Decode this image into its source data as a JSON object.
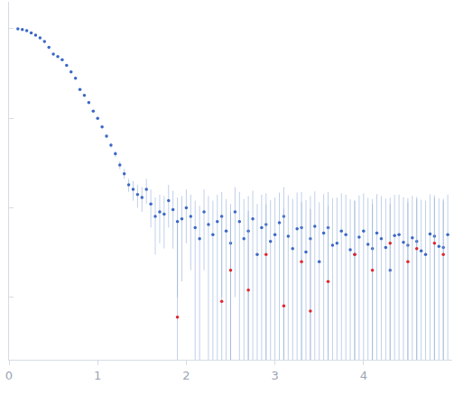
{
  "chart_data": {
    "type": "scatter",
    "log": "y",
    "grid": false,
    "tick_labels": "x",
    "xlim": [
      0,
      5
    ],
    "xticks": [
      0,
      1,
      2,
      3,
      4
    ],
    "ylim": [
      0.0002,
      2
    ],
    "yticks": [
      1,
      0.1,
      0.01,
      0.001
    ],
    "series": [
      {
        "color": "#3b67c6",
        "marker": "circle",
        "x": [
          0.1,
          0.15,
          0.2,
          0.25,
          0.3,
          0.35,
          0.4,
          0.45,
          0.5,
          0.55,
          0.6,
          0.65,
          0.7,
          0.75,
          0.8,
          0.85,
          0.9,
          0.95,
          1.0,
          1.05,
          1.1,
          1.15,
          1.2,
          1.25,
          1.3,
          1.35,
          1.4,
          1.45,
          1.5,
          1.55,
          1.6,
          1.65,
          1.7,
          1.75,
          1.8,
          1.85,
          1.9,
          1.95,
          2.0,
          2.05,
          2.1,
          2.15,
          2.2,
          2.25,
          2.3,
          2.35,
          2.4,
          2.45,
          2.5,
          2.55,
          2.6,
          2.65,
          2.7,
          2.75,
          2.8,
          2.85,
          2.9,
          2.95,
          3.0,
          3.05,
          3.1,
          3.15,
          3.2,
          3.25,
          3.3,
          3.35,
          3.4,
          3.45,
          3.5,
          3.55,
          3.6,
          3.65,
          3.7,
          3.75,
          3.8,
          3.85,
          3.9,
          3.95,
          4.0,
          4.05,
          4.1,
          4.15,
          4.2,
          4.25,
          4.3,
          4.35,
          4.4,
          4.45,
          4.5,
          4.55,
          4.6,
          4.65,
          4.7,
          4.75,
          4.8,
          4.85,
          4.9,
          4.95
        ],
        "values": [
          1.0,
          0.98,
          0.95,
          0.9,
          0.85,
          0.79,
          0.72,
          0.62,
          0.52,
          0.49,
          0.45,
          0.39,
          0.33,
          0.28,
          0.21,
          0.18,
          0.15,
          0.12,
          0.1,
          0.08,
          0.063,
          0.05,
          0.04,
          0.03,
          0.024,
          0.018,
          0.016,
          0.014,
          0.013,
          0.016,
          0.011,
          0.008,
          0.009,
          0.0085,
          0.012,
          0.0095,
          0.007,
          0.0075,
          0.01,
          0.008,
          0.006,
          0.0045,
          0.009,
          0.0065,
          0.005,
          0.007,
          0.008,
          0.0055,
          0.004,
          0.009,
          0.007,
          0.0045,
          0.0055,
          0.0075,
          0.003,
          0.006,
          0.0065,
          0.0042,
          0.005,
          0.0068,
          0.008,
          0.0048,
          0.0035,
          0.0058,
          0.006,
          0.0032,
          0.0045,
          0.0062,
          0.0025,
          0.0052,
          0.006,
          0.0038,
          0.004,
          0.0055,
          0.005,
          0.0034,
          0.003,
          0.0047,
          0.0055,
          0.0039,
          0.0035,
          0.0052,
          0.0045,
          0.0036,
          0.002,
          0.0049,
          0.005,
          0.0041,
          0.0038,
          0.0046,
          0.0042,
          0.0033,
          0.003,
          0.0051,
          0.0048,
          0.0037,
          0.0036,
          0.005
        ],
        "errors": [
          0.02,
          0.02,
          0.02,
          0.015,
          0.015,
          0.012,
          0.01,
          0.01,
          0.008,
          0.008,
          0.007,
          0.006,
          0.005,
          0.005,
          0.004,
          0.004,
          0.003,
          0.003,
          0.003,
          0.003,
          0.003,
          0.003,
          0.003,
          0.003,
          0.003,
          0.003,
          0.004,
          0.004,
          0.004,
          0.005,
          0.005,
          0.005,
          0.005,
          0.005,
          0.006,
          0.006,
          0.006,
          0.006,
          0.006,
          0.006,
          0.006,
          0.006,
          0.007,
          0.007,
          0.007,
          0.007,
          0.007,
          0.007,
          0.007,
          0.008,
          0.008,
          0.008,
          0.008,
          0.008,
          0.008,
          0.008,
          0.008,
          0.008,
          0.008,
          0.008,
          0.009,
          0.009,
          0.009,
          0.009,
          0.009,
          0.009,
          0.009,
          0.009,
          0.009,
          0.009,
          0.009,
          0.009,
          0.009,
          0.009,
          0.009,
          0.009,
          0.009,
          0.009,
          0.009,
          0.009,
          0.009,
          0.009,
          0.009,
          0.009,
          0.009,
          0.009,
          0.009,
          0.009,
          0.009,
          0.009,
          0.009,
          0.009,
          0.009,
          0.009,
          0.009,
          0.009,
          0.009,
          0.009
        ]
      },
      {
        "color": "#e0262c",
        "marker": "circle",
        "x": [
          1.9,
          2.4,
          2.5,
          2.7,
          2.9,
          3.1,
          3.3,
          3.4,
          3.6,
          3.9,
          4.1,
          4.3,
          4.5,
          4.6,
          4.8,
          4.9
        ],
        "values": [
          0.0006,
          0.0009,
          0.002,
          0.0012,
          0.003,
          0.0008,
          0.0025,
          0.0007,
          0.0015,
          0.003,
          0.002,
          0.004,
          0.0025,
          0.0035,
          0.004,
          0.003
        ],
        "errors": [
          0.006,
          0.007,
          0.007,
          0.008,
          0.008,
          0.009,
          0.009,
          0.009,
          0.009,
          0.009,
          0.009,
          0.009,
          0.009,
          0.009,
          0.009,
          0.009
        ]
      }
    ]
  }
}
